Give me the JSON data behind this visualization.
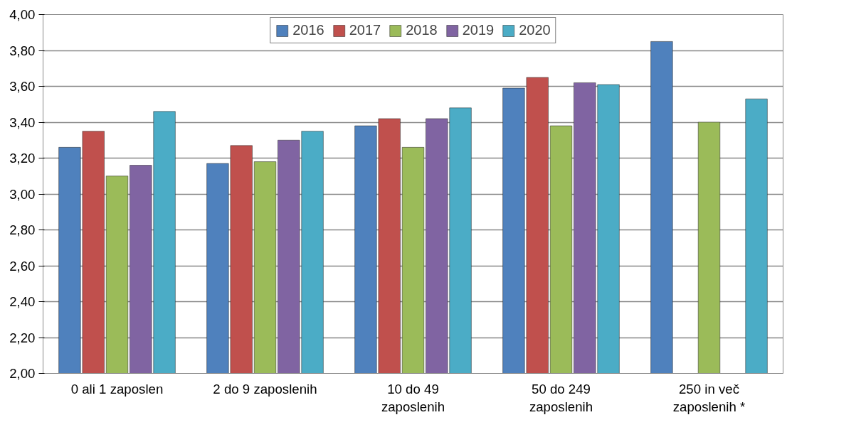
{
  "chart_data": {
    "type": "bar",
    "categories": [
      "0 ali 1 zaposlen",
      "2 do 9 zaposlenih",
      "10 do 49 zaposlenih",
      "50 do 249 zaposlenih",
      "250 in več zaposlenih *"
    ],
    "series": [
      {
        "name": "2016",
        "color": "#4f81bd",
        "values": [
          3.26,
          3.17,
          3.38,
          3.59,
          3.85
        ]
      },
      {
        "name": "2017",
        "color": "#c0504d",
        "values": [
          3.35,
          3.27,
          3.42,
          3.65,
          null
        ]
      },
      {
        "name": "2018",
        "color": "#9bbb59",
        "values": [
          3.1,
          3.18,
          3.26,
          3.38,
          3.4
        ]
      },
      {
        "name": "2019",
        "color": "#8064a2",
        "values": [
          3.16,
          3.3,
          3.42,
          3.62,
          null
        ]
      },
      {
        "name": "2020",
        "color": "#4bacc6",
        "values": [
          3.46,
          3.35,
          3.48,
          3.61,
          3.53
        ]
      }
    ],
    "ylim": [
      2,
      4
    ],
    "yticks": [
      {
        "value": 2,
        "label": "2,00"
      },
      {
        "value": 2.2,
        "label": "2,20"
      },
      {
        "value": 2.4,
        "label": "2,40"
      },
      {
        "value": 2.6,
        "label": "2,60"
      },
      {
        "value": 2.8,
        "label": "2,80"
      },
      {
        "value": 3,
        "label": "3,00"
      },
      {
        "value": 3.2,
        "label": "3,20"
      },
      {
        "value": 3.4,
        "label": "3,40"
      },
      {
        "value": 3.6,
        "label": "3,60"
      },
      {
        "value": 3.8,
        "label": "3,80"
      },
      {
        "value": 4,
        "label": "4,00"
      }
    ],
    "grid": "y",
    "legend": "top"
  }
}
